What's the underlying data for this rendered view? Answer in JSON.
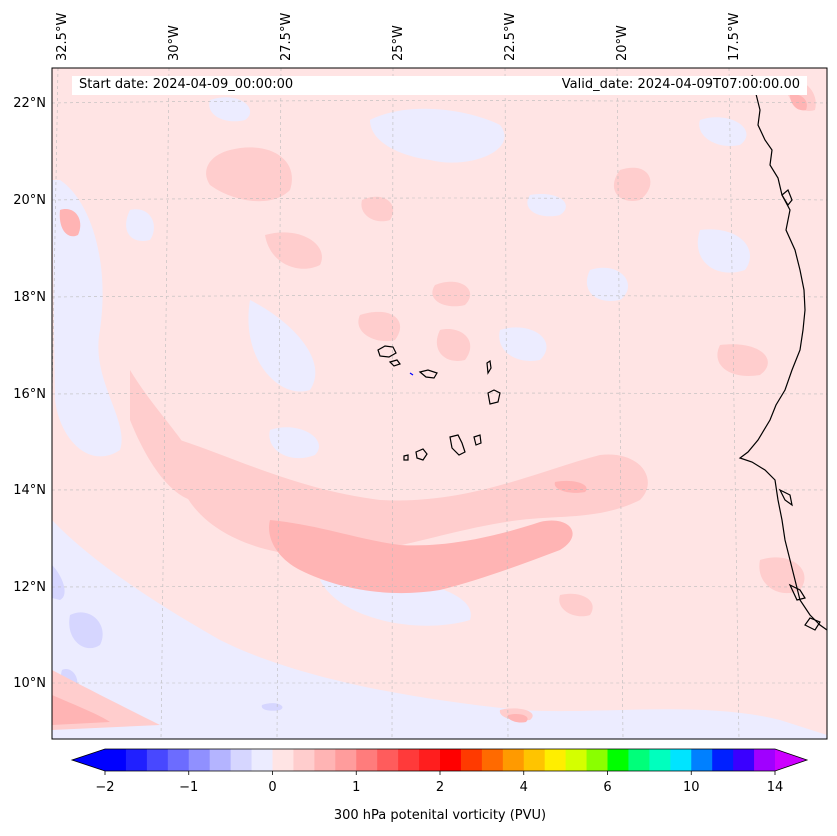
{
  "map": {
    "variable": "300 hPa potenital vorticity (PVU)",
    "start_date_text": "Start date: 2024-04-09_00:00:00",
    "valid_date_text": "Valid_date: 2024-04-09T07:00:00.00",
    "longitude_labels": [
      "32.5°W",
      "30°W",
      "27.5°W",
      "25°W",
      "22.5°W",
      "20°W",
      "17.5°W"
    ],
    "latitude_labels": [
      "22°N",
      "20°N",
      "18°N",
      "16°N",
      "14°N",
      "12°N",
      "10°N"
    ],
    "coastline_color": "#000000"
  },
  "colorbar": {
    "label": "300 hPa potenital vorticity (PVU)",
    "tick_labels": [
      "−2",
      "−1",
      "0",
      "1",
      "2",
      "4",
      "6",
      "10",
      "14"
    ],
    "tick_values": [
      -2,
      -1,
      0,
      1,
      2,
      4,
      6,
      10,
      14
    ],
    "colors": [
      "#0000ff",
      "#2020ff",
      "#4848ff",
      "#6c6cff",
      "#9090ff",
      "#b4b4ff",
      "#d6d6ff",
      "#ececff",
      "#ffe4e4",
      "#ffcdcd",
      "#ffb4b4",
      "#ff9c9c",
      "#ff7c7c",
      "#ff5c5c",
      "#ff3a3a",
      "#ff1e1e",
      "#ff0000",
      "#ff3a00",
      "#ff6a00",
      "#ff9a00",
      "#ffc400",
      "#ffee00",
      "#d4ff00",
      "#8aff00",
      "#00ff00",
      "#00ff7a",
      "#00ffbe",
      "#00e4ff",
      "#0080ff",
      "#0020ff",
      "#3a00ff",
      "#a000ff"
    ],
    "under_color": "#0000ff",
    "over_color": "#cc00ff"
  }
}
